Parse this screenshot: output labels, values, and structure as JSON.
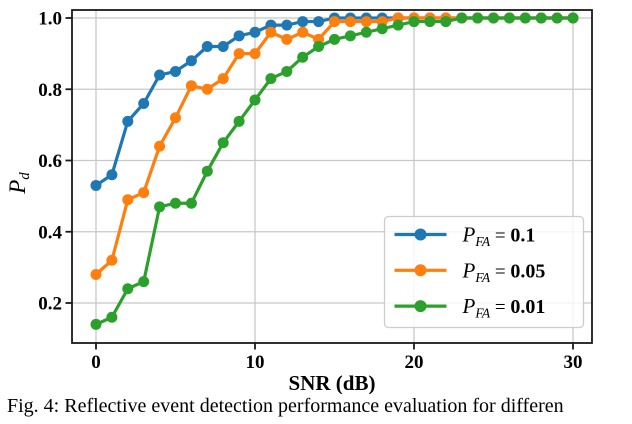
{
  "figure": {
    "caption": "Fig. 4: Reflective event detection performance evaluation for differen"
  },
  "colors": {
    "blue": "#1f77b4",
    "orange": "#ff7f0e",
    "green": "#2ca02c",
    "grid": "#c8c8c8",
    "spine": "#1a1a1a",
    "legend_border": "#cccccc",
    "legend_bg": "rgba(255,255,255,0.8)"
  },
  "chart_data": {
    "type": "line",
    "title": "",
    "xlabel": "SNR (dB)",
    "ylabel": "P_d",
    "ylabel_main": "P",
    "ylabel_sub": "d",
    "grid": true,
    "legend_position": "lower right",
    "xlim": [
      -1.5,
      31.2
    ],
    "ylim": [
      0.085,
      1.025
    ],
    "xticks": [
      0,
      10,
      20,
      30
    ],
    "xtick_labels": [
      "0",
      "10",
      "20",
      "30"
    ],
    "yticks": [
      0.2,
      0.4,
      0.6,
      0.8,
      1.0
    ],
    "ytick_labels": [
      "0.2",
      "0.4",
      "0.6",
      "0.8",
      "1.0"
    ],
    "x": [
      0,
      1,
      2,
      3,
      4,
      5,
      6,
      7,
      8,
      9,
      10,
      11,
      12,
      13,
      14,
      15,
      16,
      17,
      18,
      19,
      20,
      21,
      22,
      23,
      24,
      25,
      26,
      27,
      28,
      29,
      30
    ],
    "series": [
      {
        "key": "pfa-0p1",
        "name": "P_FA = 0.1",
        "color": "#1f77b4",
        "marker": "circle",
        "values": [
          0.53,
          0.56,
          0.71,
          0.76,
          0.84,
          0.85,
          0.88,
          0.92,
          0.92,
          0.95,
          0.96,
          0.98,
          0.98,
          0.99,
          0.99,
          1.0,
          1.0,
          1.0,
          1.0,
          1.0,
          1.0,
          1.0,
          1.0,
          1.0,
          1.0,
          1.0,
          1.0,
          1.0,
          1.0,
          1.0,
          1.0
        ]
      },
      {
        "key": "pfa-0p05",
        "name": "P_FA = 0.05",
        "color": "#ff7f0e",
        "marker": "circle",
        "values": [
          0.28,
          0.32,
          0.49,
          0.51,
          0.64,
          0.72,
          0.81,
          0.8,
          0.83,
          0.9,
          0.9,
          0.96,
          0.94,
          0.96,
          0.94,
          0.99,
          0.99,
          0.99,
          0.99,
          1.0,
          1.0,
          1.0,
          1.0,
          1.0,
          1.0,
          1.0,
          1.0,
          1.0,
          1.0,
          1.0,
          1.0
        ]
      },
      {
        "key": "pfa-0p01",
        "name": "P_FA = 0.01",
        "color": "#2ca02c",
        "marker": "circle",
        "values": [
          0.14,
          0.16,
          0.24,
          0.26,
          0.47,
          0.48,
          0.48,
          0.57,
          0.65,
          0.71,
          0.77,
          0.83,
          0.85,
          0.89,
          0.92,
          0.94,
          0.95,
          0.96,
          0.97,
          0.98,
          0.99,
          0.99,
          0.99,
          1.0,
          1.0,
          1.0,
          1.0,
          1.0,
          1.0,
          1.0,
          1.0
        ]
      }
    ]
  },
  "legend": {
    "items": [
      {
        "sym": "P",
        "sub": "FA",
        "eq": "=",
        "val": "0.1",
        "color": "#1f77b4"
      },
      {
        "sym": "P",
        "sub": "FA",
        "eq": "=",
        "val": "0.05",
        "color": "#ff7f0e"
      },
      {
        "sym": "P",
        "sub": "FA",
        "eq": "=",
        "val": "0.01",
        "color": "#2ca02c"
      }
    ]
  }
}
